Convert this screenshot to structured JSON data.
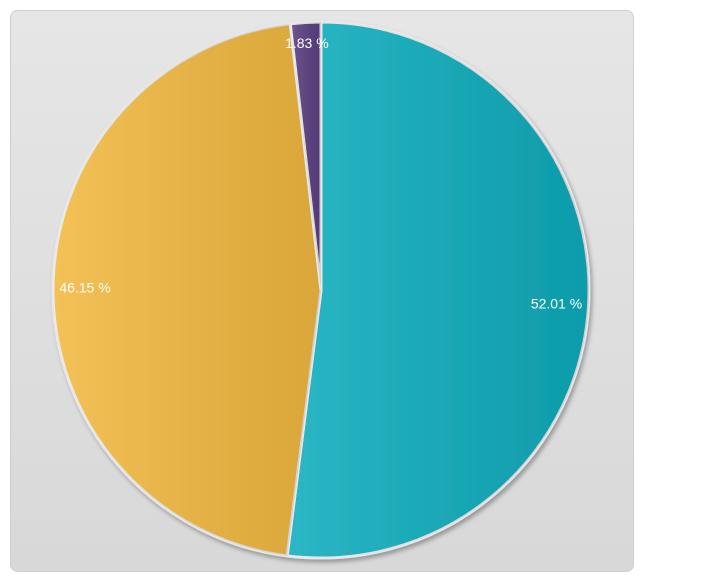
{
  "chart_data": {
    "type": "pie",
    "categories": [
      null,
      null,
      null
    ],
    "values": [
      52.01,
      46.15,
      1.83
    ],
    "value_labels": [
      "52.01 %",
      "46.15 %",
      "1.83 %"
    ],
    "colors": [
      "#0fadbd",
      "#f2b940",
      "#5b3f80"
    ]
  }
}
